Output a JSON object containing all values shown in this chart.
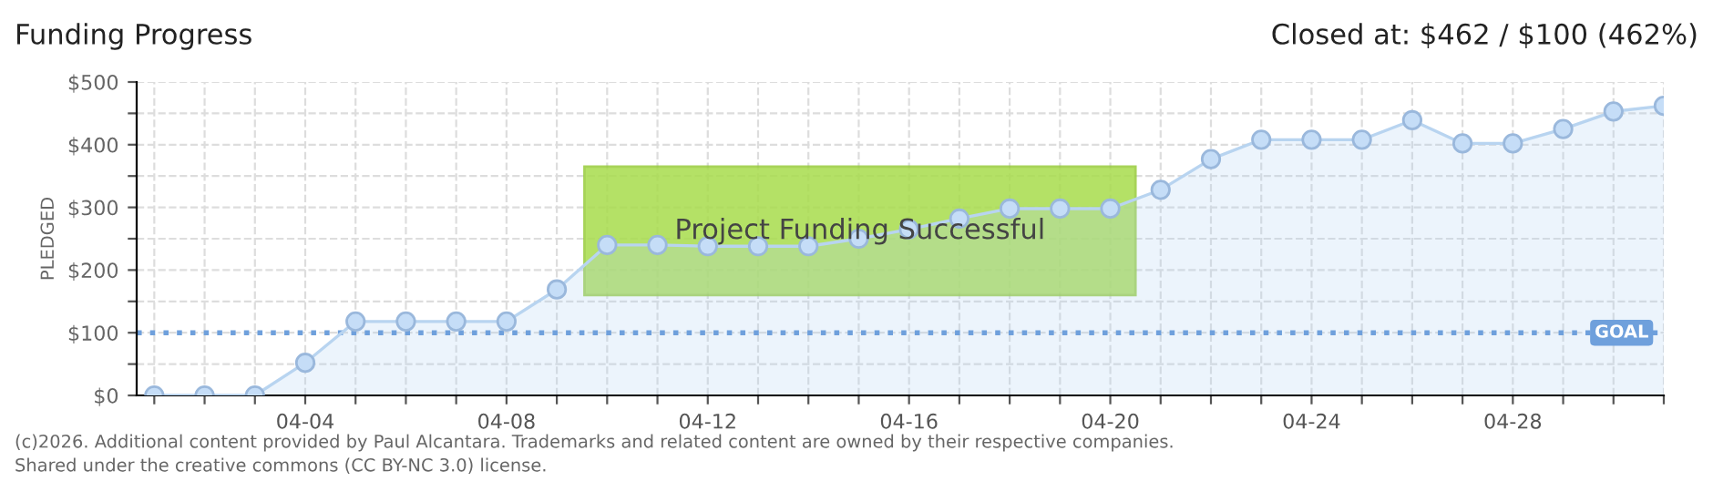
{
  "chart_data": {
    "type": "area",
    "title": "Funding Progress",
    "ylabel": "PLEDGED",
    "categories": [
      null,
      null,
      null,
      "04-04",
      null,
      null,
      null,
      "04-08",
      null,
      null,
      null,
      "04-12",
      null,
      null,
      null,
      "04-16",
      null,
      null,
      null,
      "04-20",
      null,
      null,
      null,
      "04-24",
      null,
      null,
      null,
      "04-28",
      null,
      null,
      null
    ],
    "series": [
      {
        "color": "#c5ddf7",
        "values": [
          0,
          0,
          0,
          52,
          118,
          118,
          118,
          118,
          169,
          240,
          240,
          238,
          238,
          238,
          250,
          265,
          282,
          298,
          298,
          298,
          328,
          377,
          408,
          408,
          408,
          439,
          402,
          402,
          425,
          453,
          462
        ]
      }
    ],
    "ylim": [
      0,
      500
    ],
    "yticks": [
      {
        "value": 0,
        "label": "$0"
      },
      {
        "value": 50,
        "label": null
      },
      {
        "value": 100,
        "label": "$100"
      },
      {
        "value": 150,
        "label": null
      },
      {
        "value": 200,
        "label": "$200"
      },
      {
        "value": 250,
        "label": null
      },
      {
        "value": 300,
        "label": "$300"
      },
      {
        "value": 350,
        "label": null
      },
      {
        "value": 400,
        "label": "$400"
      },
      {
        "value": 450,
        "label": null
      },
      {
        "value": 500,
        "label": "$500"
      }
    ],
    "ref_lines": [
      {
        "axis": "y",
        "value": 100,
        "label": "GOAL",
        "color": "#6fa0dc",
        "line_style": "dotted"
      }
    ],
    "annotations": [
      "Closed at: $462 / $100 (462%)",
      "Project Funding Successful",
      "(c)2026. Additional content provided by Paul Alcantara. Trademarks and related content are owned by their respective companies.",
      "Shared under the creative commons (CC BY-NC 3.0) license."
    ],
    "grid": true,
    "legend": false,
    "marker": "circle",
    "line_style": "solid"
  }
}
